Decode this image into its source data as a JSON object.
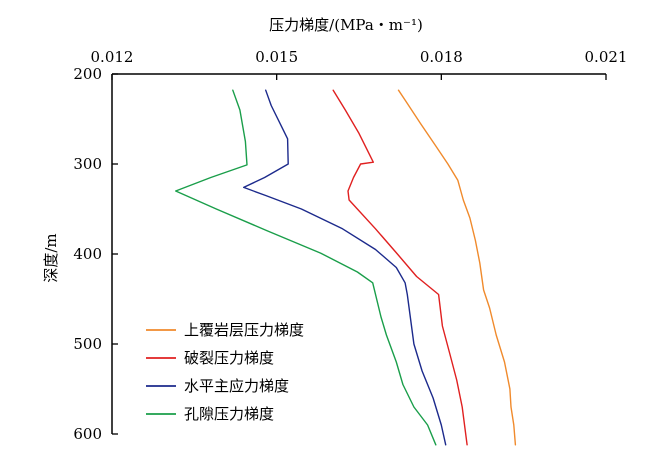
{
  "chart_data": {
    "type": "line",
    "title": "",
    "xlabel": "压力梯度/(MPa・m⁻¹)",
    "ylabel": "深度/m",
    "x_axis_position": "top",
    "y_inverted": true,
    "xlim": [
      0.012,
      0.021
    ],
    "ylim": [
      200,
      600
    ],
    "x_ticks": [
      "0.012",
      "0.015",
      "0.018",
      "0.021"
    ],
    "y_ticks": [
      "200",
      "300",
      "400",
      "500",
      "600"
    ],
    "grid": false,
    "legend_position": "bottom-left",
    "series": [
      {
        "name": "上覆岩层压力梯度",
        "color": "#f08a2c",
        "points": [
          [
            0.01722,
            218
          ],
          [
            0.01735,
            230
          ],
          [
            0.01762,
            255
          ],
          [
            0.0179,
            280
          ],
          [
            0.01812,
            300
          ],
          [
            0.0183,
            318
          ],
          [
            0.0184,
            340
          ],
          [
            0.01852,
            360
          ],
          [
            0.01862,
            385
          ],
          [
            0.0187,
            410
          ],
          [
            0.01877,
            440
          ],
          [
            0.01888,
            460
          ],
          [
            0.019,
            490
          ],
          [
            0.01915,
            520
          ],
          [
            0.01925,
            550
          ],
          [
            0.01927,
            570
          ],
          [
            0.01932,
            590
          ],
          [
            0.01935,
            612
          ]
        ]
      },
      {
        "name": "破裂压力梯度",
        "color": "#e02020",
        "points": [
          [
            0.01603,
            218
          ],
          [
            0.01625,
            240
          ],
          [
            0.0165,
            266
          ],
          [
            0.01676,
            298
          ],
          [
            0.01653,
            300
          ],
          [
            0.0164,
            315
          ],
          [
            0.0163,
            330
          ],
          [
            0.01632,
            340
          ],
          [
            0.0168,
            372
          ],
          [
            0.0172,
            400
          ],
          [
            0.01755,
            425
          ],
          [
            0.01795,
            445
          ],
          [
            0.01802,
            480
          ],
          [
            0.01815,
            510
          ],
          [
            0.01828,
            540
          ],
          [
            0.01838,
            570
          ],
          [
            0.01847,
            612
          ]
        ]
      },
      {
        "name": "水平主应力梯度",
        "color": "#1c2a8c",
        "points": [
          [
            0.0148,
            218
          ],
          [
            0.0149,
            235
          ],
          [
            0.0152,
            272
          ],
          [
            0.01521,
            300
          ],
          [
            0.01478,
            315
          ],
          [
            0.0144,
            326
          ],
          [
            0.0148,
            335
          ],
          [
            0.01545,
            350
          ],
          [
            0.0162,
            372
          ],
          [
            0.0168,
            395
          ],
          [
            0.01718,
            415
          ],
          [
            0.01734,
            432
          ],
          [
            0.01738,
            445
          ],
          [
            0.0175,
            500
          ],
          [
            0.01765,
            530
          ],
          [
            0.01785,
            560
          ],
          [
            0.018,
            590
          ],
          [
            0.01808,
            612
          ]
        ]
      },
      {
        "name": "孔隙压力梯度",
        "color": "#1a9e4a",
        "points": [
          [
            0.0142,
            218
          ],
          [
            0.01433,
            240
          ],
          [
            0.01443,
            275
          ],
          [
            0.01446,
            301
          ],
          [
            0.0138,
            315
          ],
          [
            0.01316,
            330
          ],
          [
            0.0139,
            350
          ],
          [
            0.01482,
            374
          ],
          [
            0.0158,
            399
          ],
          [
            0.01647,
            420
          ],
          [
            0.01675,
            432
          ],
          [
            0.0169,
            470
          ],
          [
            0.017,
            490
          ],
          [
            0.01718,
            520
          ],
          [
            0.0173,
            545
          ],
          [
            0.0175,
            570
          ],
          [
            0.01775,
            590
          ],
          [
            0.0179,
            612
          ]
        ]
      }
    ]
  }
}
